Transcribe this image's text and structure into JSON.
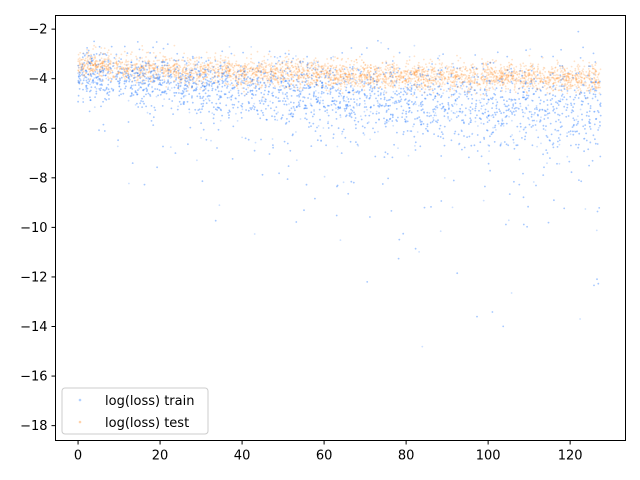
{
  "chart_data": {
    "type": "scatter",
    "title": "",
    "xlabel": "",
    "ylabel": "",
    "xlim": [
      -5.5,
      133.5
    ],
    "ylim": [
      -18.6,
      -1.45
    ],
    "x_ticks": [
      0,
      20,
      40,
      60,
      80,
      100,
      120
    ],
    "y_ticks": [
      -2,
      -4,
      -6,
      -8,
      -10,
      -12,
      -14,
      -16,
      -18
    ],
    "grid": false,
    "legend_position": "lower-left",
    "series": [
      {
        "name": "log(loss) train",
        "color": "#1f77ff",
        "x": [
          0,
          5,
          10,
          15,
          20,
          25,
          30,
          35,
          40,
          45,
          50,
          55,
          60,
          65,
          70,
          75,
          80,
          85,
          90,
          95,
          100,
          105,
          110,
          115,
          120,
          125,
          127.5
        ],
        "values": [
          -3.8,
          -3.9,
          -3.9,
          -4.0,
          -4.0,
          -4.1,
          -4.2,
          -4.3,
          -4.4,
          -4.5,
          -4.5,
          -4.6,
          -4.7,
          -4.7,
          -4.8,
          -4.8,
          -4.9,
          -4.9,
          -5.0,
          -5.0,
          -5.0,
          -5.1,
          -5.1,
          -5.1,
          -5.2,
          -5.2,
          -5.2
        ]
      },
      {
        "name": "log(loss) test",
        "color": "#ff7f0e",
        "x": [
          0,
          5,
          10,
          15,
          20,
          25,
          30,
          35,
          40,
          45,
          50,
          55,
          60,
          65,
          70,
          75,
          80,
          85,
          90,
          95,
          100,
          105,
          110,
          115,
          120,
          125,
          127.5
        ],
        "values": [
          -3.5,
          -3.5,
          -3.6,
          -3.6,
          -3.6,
          -3.7,
          -3.7,
          -3.7,
          -3.8,
          -3.8,
          -3.8,
          -3.8,
          -3.8,
          -3.9,
          -3.9,
          -3.9,
          -3.9,
          -3.9,
          -3.9,
          -3.9,
          -3.9,
          -3.9,
          -3.9,
          -4.0,
          -4.0,
          -4.0,
          -4.0
        ]
      }
    ]
  }
}
